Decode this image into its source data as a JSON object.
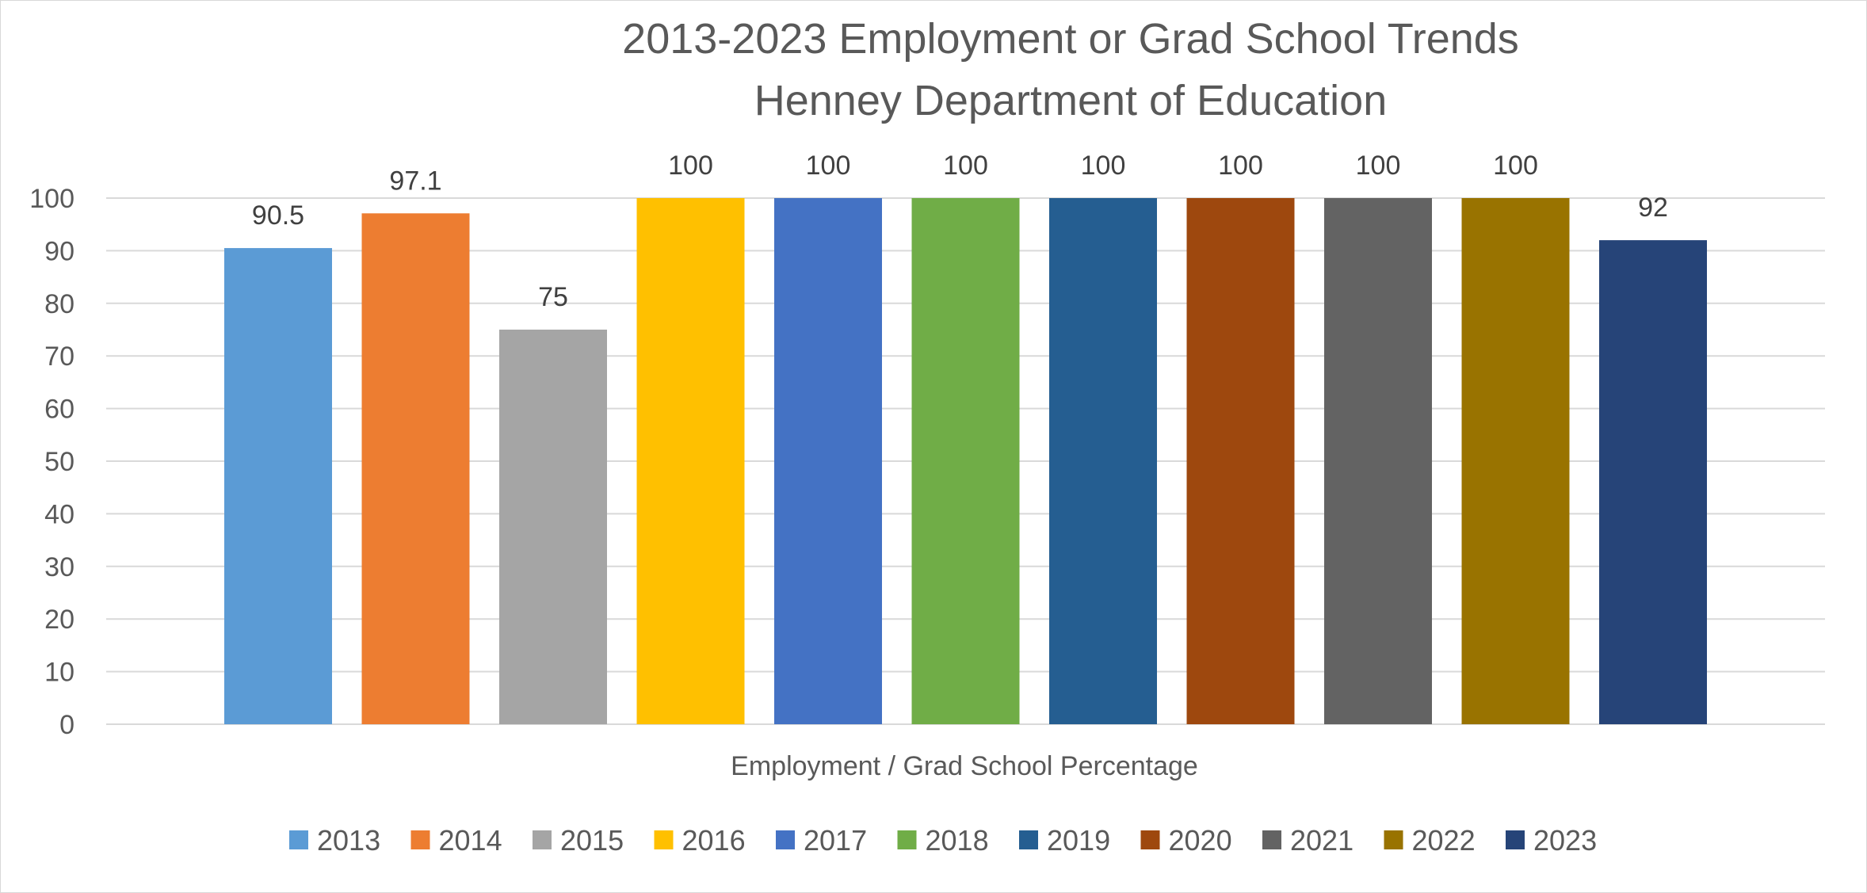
{
  "chart_data": {
    "type": "bar",
    "title": "2013-2023 Employment or Grad School Trends",
    "subtitle": "Henney Department of Education",
    "xlabel": "Employment / Grad School Percentage",
    "ylabel": "",
    "ylim": [
      0,
      100
    ],
    "yticks": [
      0,
      10,
      20,
      30,
      40,
      50,
      60,
      70,
      80,
      90,
      100
    ],
    "grid": true,
    "legend_position": "bottom",
    "categories": [
      "Employment / Grad School Percentage"
    ],
    "series": [
      {
        "name": "2013",
        "value": 90.5,
        "label": "90.5",
        "color": "#5B9BD5"
      },
      {
        "name": "2014",
        "value": 97.1,
        "label": "97.1",
        "color": "#ED7D31"
      },
      {
        "name": "2015",
        "value": 75,
        "label": "75",
        "color": "#A5A5A5"
      },
      {
        "name": "2016",
        "value": 100,
        "label": "100",
        "color": "#FFC000"
      },
      {
        "name": "2017",
        "value": 100,
        "label": "100",
        "color": "#4472C4"
      },
      {
        "name": "2018",
        "value": 100,
        "label": "100",
        "color": "#70AD47"
      },
      {
        "name": "2019",
        "value": 100,
        "label": "100",
        "color": "#255E91"
      },
      {
        "name": "2020",
        "value": 100,
        "label": "100",
        "color": "#9E480E"
      },
      {
        "name": "2021",
        "value": 100,
        "label": "100",
        "color": "#636363"
      },
      {
        "name": "2022",
        "value": 100,
        "label": "100",
        "color": "#997300"
      },
      {
        "name": "2023",
        "value": 92,
        "label": "92",
        "color": "#264478"
      }
    ]
  }
}
